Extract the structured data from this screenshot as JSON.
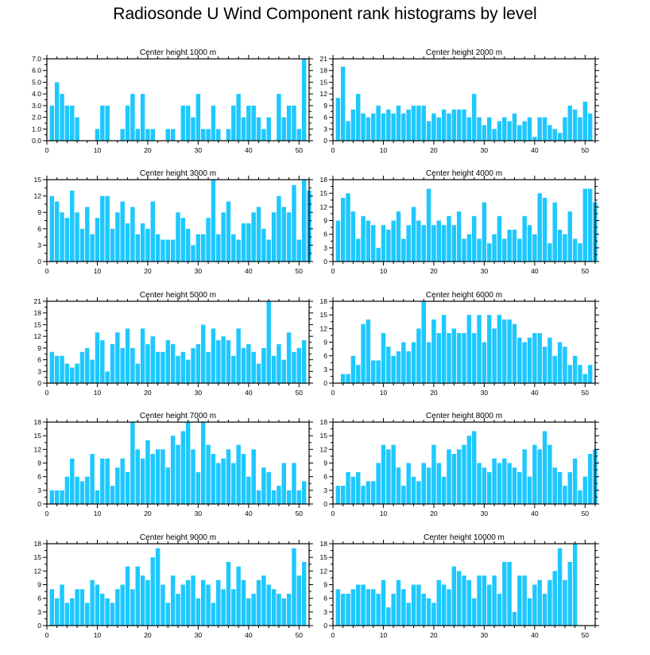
{
  "title": "Radiosonde U Wind Component rank histograms by level",
  "bar_color": "#1ec8ff",
  "chart_data": [
    {
      "type": "bar",
      "title": "Center height 1000 m",
      "xlabel": "",
      "ylabel": "",
      "ylim": [
        0,
        7
      ],
      "yticks": [
        0,
        1,
        2,
        3,
        4,
        5,
        6,
        7
      ],
      "ytick_labels": [
        "0.0",
        "1.0",
        "2.0",
        "3.0",
        "4.0",
        "5.0",
        "6.0",
        "7.0"
      ],
      "xlim": [
        0,
        52
      ],
      "xticks": [
        0,
        10,
        20,
        30,
        40,
        50
      ],
      "x_start": 1,
      "values": [
        3,
        5,
        4,
        3,
        3,
        2,
        0,
        0,
        0,
        1,
        3,
        3,
        0,
        0,
        1,
        3,
        4,
        1,
        4,
        1,
        1,
        0,
        0,
        1,
        1,
        0,
        3,
        3,
        2,
        4,
        1,
        1,
        3,
        1,
        0,
        1,
        3,
        4,
        2,
        3,
        3,
        2,
        1,
        2,
        0,
        4,
        2,
        3,
        3,
        1,
        7
      ]
    },
    {
      "type": "bar",
      "title": "Center height 2000 m",
      "xlabel": "",
      "ylabel": "",
      "ylim": [
        0,
        21
      ],
      "yticks": [
        0,
        3,
        6,
        9,
        12,
        15,
        18,
        21
      ],
      "ytick_labels": [
        "0",
        "3",
        "6",
        "9",
        "12",
        "15",
        "18",
        "21"
      ],
      "xlim": [
        0,
        52
      ],
      "xticks": [
        0,
        10,
        20,
        30,
        40,
        50
      ],
      "x_start": 1,
      "values": [
        11,
        19,
        5,
        8,
        12,
        7,
        6,
        7,
        9,
        7,
        8,
        7,
        9,
        7,
        8,
        9,
        9,
        9,
        5,
        7,
        6,
        8,
        7,
        8,
        8,
        8,
        6,
        12,
        6,
        4,
        6,
        3,
        5,
        6,
        5,
        7,
        4,
        5,
        6,
        1,
        6,
        6,
        4,
        3,
        2,
        6,
        9,
        8,
        6,
        10,
        7
      ]
    },
    {
      "type": "bar",
      "title": "Center height 3000 m",
      "xlabel": "",
      "ylabel": "",
      "ylim": [
        0,
        15
      ],
      "yticks": [
        0,
        3,
        6,
        9,
        12,
        15
      ],
      "ytick_labels": [
        "0",
        "3",
        "6",
        "9",
        "12",
        "15"
      ],
      "xlim": [
        0,
        52
      ],
      "xticks": [
        0,
        10,
        20,
        30,
        40,
        50
      ],
      "x_start": 1,
      "values": [
        12,
        11,
        9,
        8,
        13,
        9,
        6,
        10,
        5,
        8,
        12,
        12,
        6,
        9,
        11,
        7,
        10,
        5,
        7,
        6,
        11,
        5,
        4,
        4,
        4,
        9,
        8,
        6,
        3,
        5,
        5,
        8,
        15,
        5,
        9,
        11,
        5,
        4,
        7,
        7,
        9,
        10,
        6,
        4,
        9,
        12,
        10,
        9,
        14,
        4,
        15,
        13
      ]
    },
    {
      "type": "bar",
      "title": "Center height 4000 m",
      "xlabel": "",
      "ylabel": "",
      "ylim": [
        0,
        18
      ],
      "yticks": [
        0,
        3,
        6,
        9,
        12,
        15,
        18
      ],
      "ytick_labels": [
        "0",
        "3",
        "6",
        "9",
        "12",
        "15",
        "18"
      ],
      "xlim": [
        0,
        52
      ],
      "xticks": [
        0,
        10,
        20,
        30,
        40,
        50
      ],
      "x_start": 1,
      "values": [
        9,
        14,
        15,
        11,
        5,
        10,
        9,
        8,
        3,
        8,
        7,
        9,
        11,
        5,
        8,
        12,
        9,
        8,
        16,
        8,
        9,
        8,
        10,
        8,
        11,
        5,
        6,
        10,
        5,
        13,
        4,
        6,
        10,
        5,
        7,
        7,
        5,
        10,
        8,
        6,
        15,
        14,
        4,
        13,
        7,
        6,
        11,
        5,
        4,
        16,
        16,
        13
      ]
    },
    {
      "type": "bar",
      "title": "Center height 5000 m",
      "xlabel": "",
      "ylabel": "",
      "ylim": [
        0,
        21
      ],
      "yticks": [
        0,
        3,
        6,
        9,
        12,
        15,
        18,
        21
      ],
      "ytick_labels": [
        "0",
        "3",
        "6",
        "9",
        "12",
        "15",
        "18",
        "21"
      ],
      "xlim": [
        0,
        52
      ],
      "xticks": [
        0,
        10,
        20,
        30,
        40,
        50
      ],
      "x_start": 1,
      "values": [
        8,
        7,
        7,
        5,
        4,
        5,
        8,
        9,
        6,
        13,
        11,
        3,
        10,
        13,
        9,
        14,
        9,
        5,
        14,
        10,
        12,
        8,
        8,
        11,
        10,
        7,
        8,
        6,
        9,
        10,
        15,
        8,
        14,
        11,
        12,
        11,
        7,
        14,
        9,
        10,
        8,
        5,
        9,
        21,
        7,
        10,
        6,
        13,
        8,
        9,
        11
      ]
    },
    {
      "type": "bar",
      "title": "Center height 6000 m",
      "xlabel": "",
      "ylabel": "",
      "ylim": [
        0,
        18
      ],
      "yticks": [
        0,
        3,
        6,
        9,
        12,
        15,
        18
      ],
      "ytick_labels": [
        "0",
        "3",
        "6",
        "9",
        "12",
        "15",
        "18"
      ],
      "xlim": [
        0,
        52
      ],
      "xticks": [
        0,
        10,
        20,
        30,
        40,
        50
      ],
      "x_start": 1,
      "values": [
        0,
        2,
        2,
        6,
        4,
        13,
        14,
        5,
        5,
        11,
        8,
        6,
        7,
        9,
        7,
        9,
        12,
        18,
        9,
        14,
        11,
        15,
        11,
        12,
        11,
        11,
        15,
        11,
        15,
        9,
        15,
        12,
        15,
        14,
        14,
        13,
        10,
        9,
        10,
        11,
        11,
        8,
        10,
        6,
        9,
        8,
        4,
        6,
        4,
        2,
        4
      ]
    },
    {
      "type": "bar",
      "title": "Center height 7000 m",
      "xlabel": "",
      "ylabel": "",
      "ylim": [
        0,
        18
      ],
      "yticks": [
        0,
        3,
        6,
        9,
        12,
        15,
        18
      ],
      "ytick_labels": [
        "0",
        "3",
        "6",
        "9",
        "12",
        "15",
        "18"
      ],
      "xlim": [
        0,
        52
      ],
      "xticks": [
        0,
        10,
        20,
        30,
        40,
        50
      ],
      "x_start": 1,
      "values": [
        3,
        3,
        3,
        6,
        10,
        6,
        5,
        6,
        11,
        3,
        10,
        10,
        4,
        8,
        10,
        7,
        18,
        12,
        10,
        14,
        11,
        12,
        12,
        8,
        15,
        13,
        16,
        18,
        12,
        7,
        18,
        13,
        11,
        9,
        10,
        12,
        9,
        13,
        11,
        6,
        12,
        3,
        8,
        7,
        3,
        4,
        9,
        3,
        9,
        3,
        5
      ]
    },
    {
      "type": "bar",
      "title": "Center height 8000 m",
      "xlabel": "",
      "ylabel": "",
      "ylim": [
        0,
        18
      ],
      "yticks": [
        0,
        3,
        6,
        9,
        12,
        15,
        18
      ],
      "ytick_labels": [
        "0",
        "3",
        "6",
        "9",
        "12",
        "15",
        "18"
      ],
      "xlim": [
        0,
        52
      ],
      "xticks": [
        0,
        10,
        20,
        30,
        40,
        50
      ],
      "x_start": 1,
      "values": [
        4,
        4,
        7,
        6,
        7,
        4,
        5,
        5,
        9,
        13,
        12,
        13,
        8,
        4,
        9,
        6,
        5,
        9,
        8,
        13,
        9,
        6,
        12,
        11,
        12,
        13,
        15,
        16,
        9,
        8,
        7,
        10,
        9,
        10,
        9,
        8,
        7,
        12,
        6,
        13,
        12,
        16,
        13,
        8,
        7,
        4,
        7,
        10,
        3,
        6,
        11,
        12
      ]
    },
    {
      "type": "bar",
      "title": "Center height 9000 m",
      "xlabel": "",
      "ylabel": "",
      "ylim": [
        0,
        18
      ],
      "yticks": [
        0,
        3,
        6,
        9,
        12,
        15,
        18
      ],
      "ytick_labels": [
        "0",
        "3",
        "6",
        "9",
        "12",
        "15",
        "18"
      ],
      "xlim": [
        0,
        52
      ],
      "xticks": [
        0,
        10,
        20,
        30,
        40,
        50
      ],
      "x_start": 1,
      "values": [
        8,
        6,
        9,
        5,
        6,
        8,
        8,
        5,
        10,
        9,
        7,
        6,
        5,
        8,
        9,
        13,
        8,
        13,
        11,
        10,
        15,
        17,
        9,
        5,
        11,
        7,
        9,
        10,
        11,
        6,
        10,
        9,
        5,
        10,
        8,
        14,
        8,
        13,
        10,
        6,
        7,
        10,
        11,
        9,
        8,
        7,
        6,
        7,
        17,
        11,
        14
      ]
    },
    {
      "type": "bar",
      "title": "Center height 10000 m",
      "xlabel": "",
      "ylabel": "",
      "ylim": [
        0,
        18
      ],
      "yticks": [
        0,
        3,
        6,
        9,
        12,
        15,
        18
      ],
      "ytick_labels": [
        "0",
        "3",
        "6",
        "9",
        "12",
        "15",
        "18"
      ],
      "xlim": [
        0,
        52
      ],
      "xticks": [
        0,
        10,
        20,
        30,
        40,
        50
      ],
      "x_start": 1,
      "values": [
        8,
        7,
        7,
        8,
        9,
        9,
        8,
        8,
        7,
        10,
        4,
        7,
        10,
        8,
        5,
        9,
        9,
        7,
        6,
        5,
        10,
        9,
        8,
        13,
        12,
        11,
        10,
        6,
        11,
        11,
        9,
        11,
        7,
        14,
        14,
        3,
        11,
        11,
        6,
        9,
        10,
        7,
        10,
        12,
        17,
        10,
        14,
        18
      ]
    }
  ]
}
